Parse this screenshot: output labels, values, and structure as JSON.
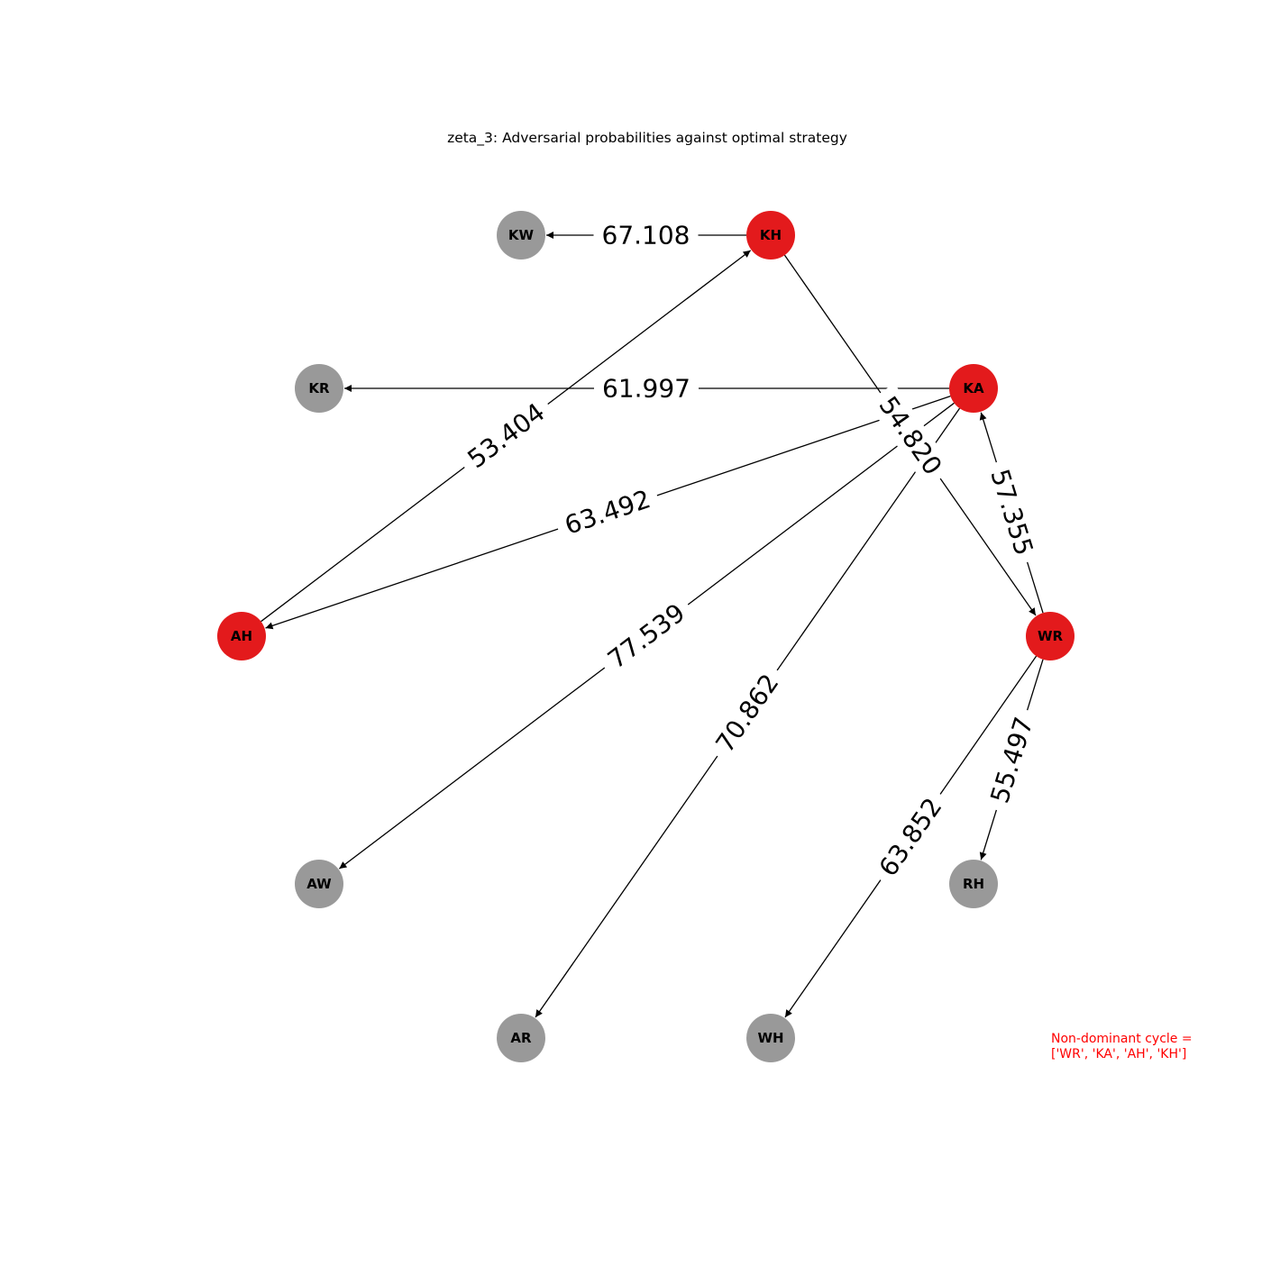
{
  "title": "zeta_3: Adversarial probabilities against optimal strategy",
  "note": {
    "line1": "Non-dominant cycle =",
    "line2": "['WR', 'KA', 'AH', 'KH']"
  },
  "colors": {
    "highlight": "#e31a1c",
    "normal": "#999999",
    "edge": "#000000",
    "note": "#ff0000"
  },
  "nodes": [
    {
      "id": "KH",
      "highlight": true
    },
    {
      "id": "KA",
      "highlight": true
    },
    {
      "id": "WR",
      "highlight": true
    },
    {
      "id": "RH",
      "highlight": false
    },
    {
      "id": "WH",
      "highlight": false
    },
    {
      "id": "AR",
      "highlight": false
    },
    {
      "id": "AW",
      "highlight": false
    },
    {
      "id": "AH",
      "highlight": true
    },
    {
      "id": "KR",
      "highlight": false
    },
    {
      "id": "KW",
      "highlight": false
    }
  ],
  "edges": [
    {
      "source": "KH",
      "target": "KW",
      "label": "67.108"
    },
    {
      "source": "KA",
      "target": "KR",
      "label": "61.997"
    },
    {
      "source": "AH",
      "target": "KH",
      "label": "53.404"
    },
    {
      "source": "KA",
      "target": "AH",
      "label": "63.492"
    },
    {
      "source": "KA",
      "target": "AW",
      "label": "77.539"
    },
    {
      "source": "KA",
      "target": "AR",
      "label": "70.862"
    },
    {
      "source": "KH",
      "target": "WR",
      "label": "54.820"
    },
    {
      "source": "WR",
      "target": "KA",
      "label": "57.355"
    },
    {
      "source": "WR",
      "target": "WH",
      "label": "63.852"
    },
    {
      "source": "WR",
      "target": "RH",
      "label": "55.497"
    }
  ]
}
